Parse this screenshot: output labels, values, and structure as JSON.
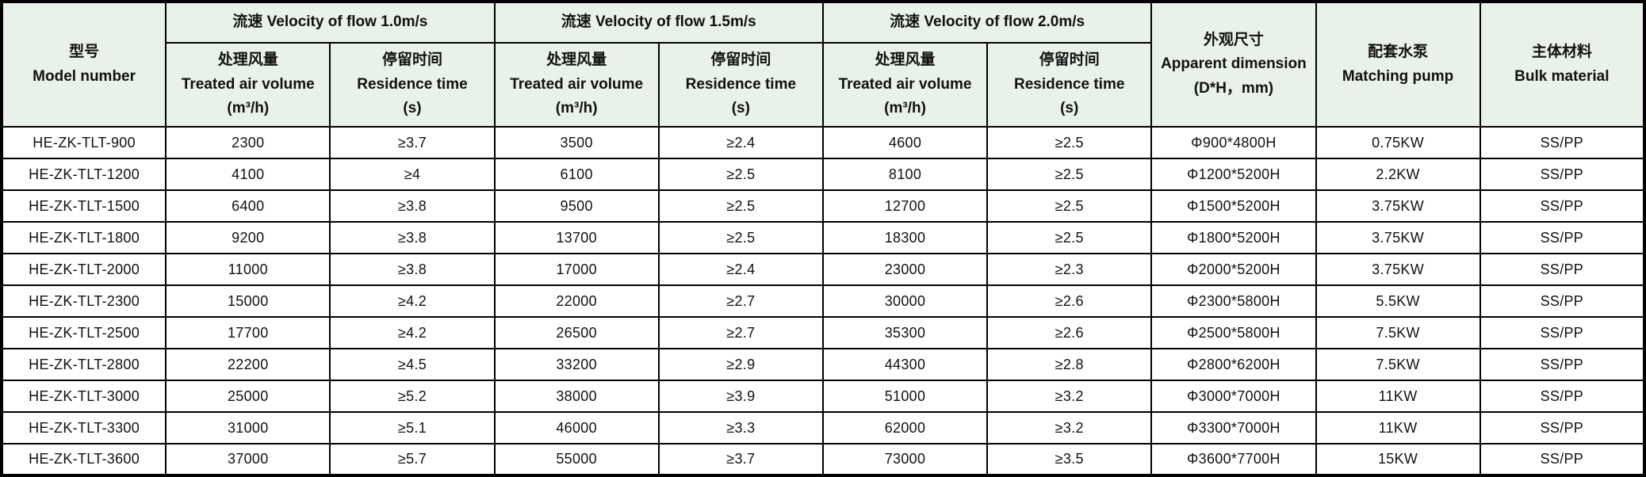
{
  "table": {
    "header": {
      "model": {
        "zh": "型号",
        "en": "Model number"
      },
      "groups": [
        {
          "label": "流速 Velocity of flow 1.0m/s"
        },
        {
          "label": "流速 Velocity of flow 1.5m/s"
        },
        {
          "label": "流速 Velocity of flow 2.0m/s"
        }
      ],
      "sub_air": {
        "zh": "处理风量",
        "en": "Treated air volume",
        "unit": "(m³/h)"
      },
      "sub_res": {
        "zh": "停留时间",
        "en": "Residence time",
        "unit": "(s)"
      },
      "dimension": {
        "zh": "外观尺寸",
        "en": "Apparent dimension",
        "unit": "(D*H，mm)"
      },
      "pump": {
        "zh": "配套水泵",
        "en": "Matching pump"
      },
      "material": {
        "zh": "主体材料",
        "en": "Bulk material"
      }
    },
    "rows": [
      {
        "model": "HE-ZK-TLT-900",
        "v10_air": "2300",
        "v10_res": "≥3.7",
        "v15_air": "3500",
        "v15_res": "≥2.4",
        "v20_air": "4600",
        "v20_res": "≥2.5",
        "dim": "Φ900*4800H",
        "pump": "0.75KW",
        "material": "SS/PP"
      },
      {
        "model": "HE-ZK-TLT-1200",
        "v10_air": "4100",
        "v10_res": "≥4",
        "v15_air": "6100",
        "v15_res": "≥2.5",
        "v20_air": "8100",
        "v20_res": "≥2.5",
        "dim": "Φ1200*5200H",
        "pump": "2.2KW",
        "material": "SS/PP"
      },
      {
        "model": "HE-ZK-TLT-1500",
        "v10_air": "6400",
        "v10_res": "≥3.8",
        "v15_air": "9500",
        "v15_res": "≥2.5",
        "v20_air": "12700",
        "v20_res": "≥2.5",
        "dim": "Φ1500*5200H",
        "pump": "3.75KW",
        "material": "SS/PP"
      },
      {
        "model": "HE-ZK-TLT-1800",
        "v10_air": "9200",
        "v10_res": "≥3.8",
        "v15_air": "13700",
        "v15_res": "≥2.5",
        "v20_air": "18300",
        "v20_res": "≥2.5",
        "dim": "Φ1800*5200H",
        "pump": "3.75KW",
        "material": "SS/PP"
      },
      {
        "model": "HE-ZK-TLT-2000",
        "v10_air": "11000",
        "v10_res": "≥3.8",
        "v15_air": "17000",
        "v15_res": "≥2.4",
        "v20_air": "23000",
        "v20_res": "≥2.3",
        "dim": "Φ2000*5200H",
        "pump": "3.75KW",
        "material": "SS/PP"
      },
      {
        "model": "HE-ZK-TLT-2300",
        "v10_air": "15000",
        "v10_res": "≥4.2",
        "v15_air": "22000",
        "v15_res": "≥2.7",
        "v20_air": "30000",
        "v20_res": "≥2.6",
        "dim": "Φ2300*5800H",
        "pump": "5.5KW",
        "material": "SS/PP"
      },
      {
        "model": "HE-ZK-TLT-2500",
        "v10_air": "17700",
        "v10_res": "≥4.2",
        "v15_air": "26500",
        "v15_res": "≥2.7",
        "v20_air": "35300",
        "v20_res": "≥2.6",
        "dim": "Φ2500*5800H",
        "pump": "7.5KW",
        "material": "SS/PP"
      },
      {
        "model": "HE-ZK-TLT-2800",
        "v10_air": "22200",
        "v10_res": "≥4.5",
        "v15_air": "33200",
        "v15_res": "≥2.9",
        "v20_air": "44300",
        "v20_res": "≥2.8",
        "dim": "Φ2800*6200H",
        "pump": "7.5KW",
        "material": "SS/PP"
      },
      {
        "model": "HE-ZK-TLT-3000",
        "v10_air": "25000",
        "v10_res": "≥5.2",
        "v15_air": "38000",
        "v15_res": "≥3.9",
        "v20_air": "51000",
        "v20_res": "≥3.2",
        "dim": "Φ3000*7000H",
        "pump": "11KW",
        "material": "SS/PP"
      },
      {
        "model": "HE-ZK-TLT-3300",
        "v10_air": "31000",
        "v10_res": "≥5.1",
        "v15_air": "46000",
        "v15_res": "≥3.3",
        "v20_air": "62000",
        "v20_res": "≥3.2",
        "dim": "Φ3300*7000H",
        "pump": "11KW",
        "material": "SS/PP"
      },
      {
        "model": "HE-ZK-TLT-3600",
        "v10_air": "37000",
        "v10_res": "≥5.7",
        "v15_air": "55000",
        "v15_res": "≥3.7",
        "v20_air": "73000",
        "v20_res": "≥3.5",
        "dim": "Φ3600*7700H",
        "pump": "15KW",
        "material": "SS/PP"
      }
    ]
  }
}
